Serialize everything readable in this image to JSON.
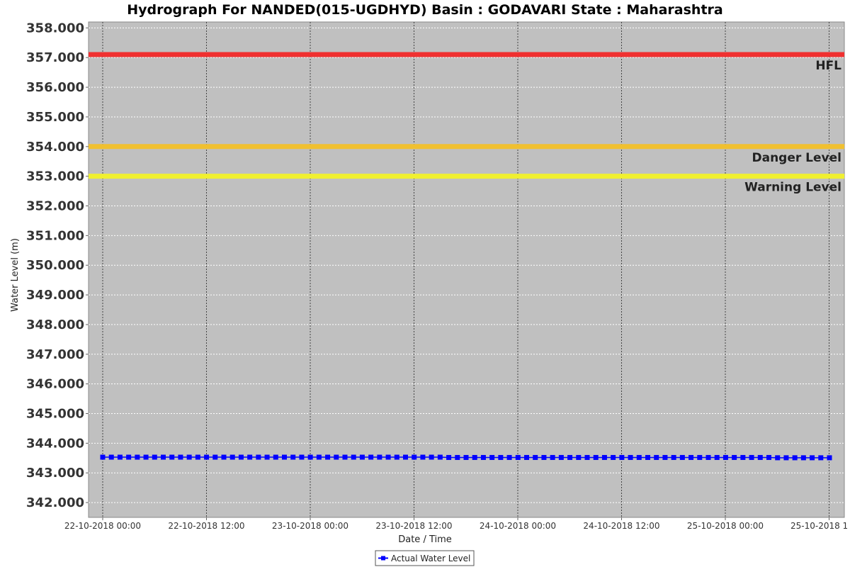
{
  "chart_data": {
    "type": "line",
    "title": "Hydrograph For NANDED(015-UGDHYD) Basin : GODAVARI State : Maharashtra",
    "xlabel": "Date / Time",
    "ylabel": "Water Level (m)",
    "ylim": [
      341.5,
      358.2
    ],
    "yticks": [
      342,
      343,
      344,
      345,
      346,
      347,
      348,
      349,
      350,
      351,
      352,
      353,
      354,
      355,
      356,
      357,
      358
    ],
    "ytick_labels": [
      "342.000",
      "343.000",
      "344.000",
      "345.000",
      "346.000",
      "347.000",
      "348.000",
      "349.000",
      "350.000",
      "351.000",
      "352.000",
      "353.000",
      "354.000",
      "355.000",
      "356.000",
      "357.000",
      "358.000"
    ],
    "xlim": [
      "22-10-2018 00:00",
      "25-10-2018 00:00"
    ],
    "xticks": [
      "22-10-2018 00:00",
      "22-10-2018 12:00",
      "23-10-2018 00:00",
      "23-10-2018 12:00",
      "24-10-2018 00:00",
      "24-10-2018 12:00",
      "25-10-2018 00:00",
      "25-10-2018 1"
    ],
    "grid": true,
    "legend_position": "bottom-center",
    "reference_lines": [
      {
        "name": "HFL",
        "value": 357.1,
        "color": "#f03030"
      },
      {
        "name": "Danger Level",
        "value": 354.0,
        "color": "#f0c030"
      },
      {
        "name": "Warning Level",
        "value": 353.0,
        "color": "#f0f030"
      }
    ],
    "series": [
      {
        "name": "Actual Water Level",
        "color": "#0000ff",
        "values": [
          343.53,
          343.53,
          343.53,
          343.53,
          343.53,
          343.53,
          343.53,
          343.53,
          343.53,
          343.53,
          343.53,
          343.53,
          343.53,
          343.53,
          343.53,
          343.53,
          343.53,
          343.53,
          343.53,
          343.53,
          343.53,
          343.53,
          343.53,
          343.53,
          343.53,
          343.53,
          343.53,
          343.53,
          343.53,
          343.53,
          343.53,
          343.53,
          343.53,
          343.53,
          343.53,
          343.53,
          343.53,
          343.53,
          343.53,
          343.53,
          343.52,
          343.52,
          343.52,
          343.52,
          343.52,
          343.52,
          343.52,
          343.52,
          343.52,
          343.52,
          343.52,
          343.52,
          343.52,
          343.52,
          343.52,
          343.52,
          343.52,
          343.52,
          343.52,
          343.52,
          343.52,
          343.52,
          343.52,
          343.52,
          343.52,
          343.52,
          343.52,
          343.52,
          343.52,
          343.52,
          343.52,
          343.52,
          343.52,
          343.52,
          343.52,
          343.52,
          343.52,
          343.52,
          343.51,
          343.51,
          343.51,
          343.51,
          343.51,
          343.51,
          343.51
        ]
      }
    ]
  }
}
